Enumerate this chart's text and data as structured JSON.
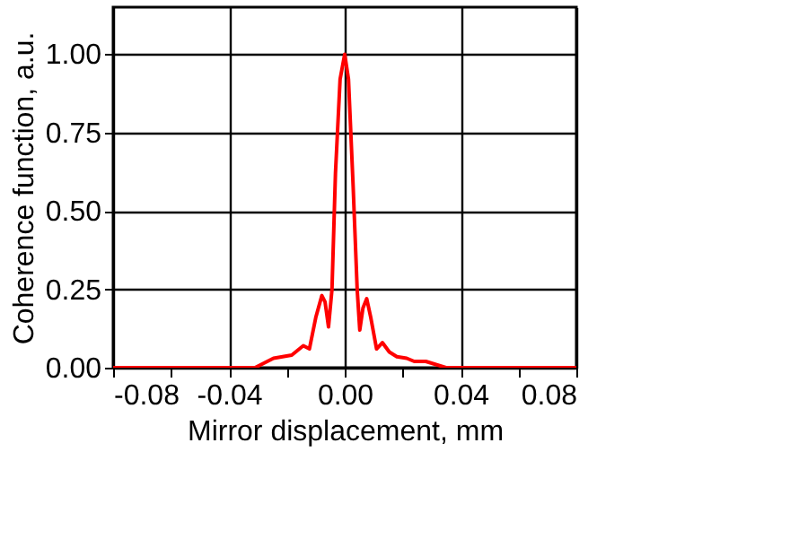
{
  "chart_data": {
    "type": "line",
    "xlabel": "Mirror displacement, mm",
    "ylabel": "Coherence function, a.u.",
    "xlim": [
      -0.08,
      0.08
    ],
    "xticks": [
      {
        "value": -0.08,
        "label": "-0.08"
      },
      {
        "value": -0.06,
        "label": null
      },
      {
        "value": -0.04,
        "label": "-0.04"
      },
      {
        "value": -0.02,
        "label": null
      },
      {
        "value": 0,
        "label": "0.00"
      },
      {
        "value": 0.02,
        "label": null
      },
      {
        "value": 0.04,
        "label": "0.04"
      },
      {
        "value": 0.06,
        "label": null
      },
      {
        "value": 0.08,
        "label": "0.08"
      }
    ],
    "ylim": [
      0,
      1.15
    ],
    "yticks": [
      {
        "value": 0,
        "label": "0.00"
      },
      {
        "value": 0.25,
        "label": "0.25"
      },
      {
        "value": 0.5,
        "label": "0.50"
      },
      {
        "value": 0.75,
        "label": "0.75"
      },
      {
        "value": 1,
        "label": "1.00"
      }
    ],
    "grid": true,
    "marker": "none",
    "line_style": "solid",
    "series": [
      {
        "color": "#ff0000",
        "x": [
          -0.08,
          -0.031,
          -0.0246,
          -0.0183,
          -0.0143,
          -0.0122,
          -0.01,
          -0.0079,
          -0.0068,
          -0.0056,
          -0.0044,
          -0.0032,
          -0.0016,
          0,
          0.0013,
          0.0029,
          0.0043,
          0.0052,
          0.0063,
          0.0076,
          0.009,
          0.011,
          0.013,
          0.0154,
          0.018,
          0.0214,
          0.024,
          0.028,
          0.035,
          0.08
        ],
        "values": [
          0,
          0,
          0.03,
          0.04,
          0.07,
          0.06,
          0.16,
          0.23,
          0.21,
          0.13,
          0.25,
          0.62,
          0.92,
          1.0,
          0.92,
          0.58,
          0.25,
          0.12,
          0.19,
          0.22,
          0.16,
          0.06,
          0.08,
          0.05,
          0.035,
          0.03,
          0.02,
          0.02,
          0,
          0
        ]
      }
    ]
  }
}
